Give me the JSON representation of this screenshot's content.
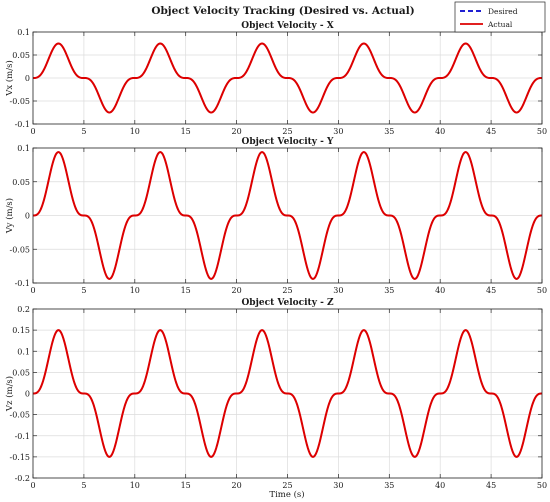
{
  "figure": {
    "suptitle": "Object Velocity Tracking (Desired vs. Actual)",
    "xlabel": "Time (s)"
  },
  "legend": {
    "placement": "top-right",
    "entries": [
      {
        "label": "Desired",
        "color": "#0000cc",
        "style": "dashed"
      },
      {
        "label": "Actual",
        "color": "#dd0000",
        "style": "solid"
      }
    ]
  },
  "chart_data": [
    {
      "type": "line",
      "title": "Object Velocity - X",
      "ylabel": "Vx (m/s)",
      "xlim": [
        0,
        50
      ],
      "ylim": [
        -0.1,
        0.1
      ],
      "xticks": [
        0,
        5,
        10,
        15,
        20,
        25,
        30,
        35,
        40,
        45,
        50
      ],
      "yticks": [
        -0.1,
        -0.05,
        0,
        0.05,
        0.1
      ],
      "yticklabels": [
        "-0.1",
        "-0.05",
        "0",
        "0.05",
        "0.1"
      ],
      "grid": true,
      "function": "amplitude * sin(2*pi*t/period)^3, t in seconds",
      "amplitude": 0.075,
      "period": 10,
      "series": [
        {
          "name": "Desired",
          "color": "#0000cc",
          "dash": true
        },
        {
          "name": "Actual",
          "color": "#dd0000",
          "dash": false
        }
      ]
    },
    {
      "type": "line",
      "title": "Object Velocity - Y",
      "ylabel": "Vy (m/s)",
      "xlim": [
        0,
        50
      ],
      "ylim": [
        -0.1,
        0.1
      ],
      "xticks": [
        0,
        5,
        10,
        15,
        20,
        25,
        30,
        35,
        40,
        45,
        50
      ],
      "yticks": [
        -0.1,
        -0.05,
        0,
        0.05,
        0.1
      ],
      "yticklabels": [
        "-0.1",
        "-0.05",
        "0",
        "0.05",
        "0.1"
      ],
      "grid": true,
      "function": "amplitude * sin(2*pi*t/period)^3, t in seconds",
      "amplitude": 0.094,
      "period": 10,
      "series": [
        {
          "name": "Desired",
          "color": "#0000cc",
          "dash": true
        },
        {
          "name": "Actual",
          "color": "#dd0000",
          "dash": false
        }
      ]
    },
    {
      "type": "line",
      "title": "Object Velocity - Z",
      "ylabel": "Vz (m/s)",
      "xlim": [
        0,
        50
      ],
      "ylim": [
        -0.2,
        0.2
      ],
      "xticks": [
        0,
        5,
        10,
        15,
        20,
        25,
        30,
        35,
        40,
        45,
        50
      ],
      "yticks": [
        -0.2,
        -0.15,
        -0.1,
        -0.05,
        0,
        0.05,
        0.1,
        0.15,
        0.2
      ],
      "yticklabels": [
        "-0.2",
        "-0.15",
        "-0.1",
        "-0.05",
        "0",
        "0.05",
        "0.1",
        "0.15",
        "0.2"
      ],
      "grid": true,
      "function": "amplitude * sin(2*pi*t/period)^3, t in seconds",
      "amplitude": 0.15,
      "period": 10,
      "series": [
        {
          "name": "Desired",
          "color": "#0000cc",
          "dash": true
        },
        {
          "name": "Actual",
          "color": "#dd0000",
          "dash": false
        }
      ]
    }
  ]
}
